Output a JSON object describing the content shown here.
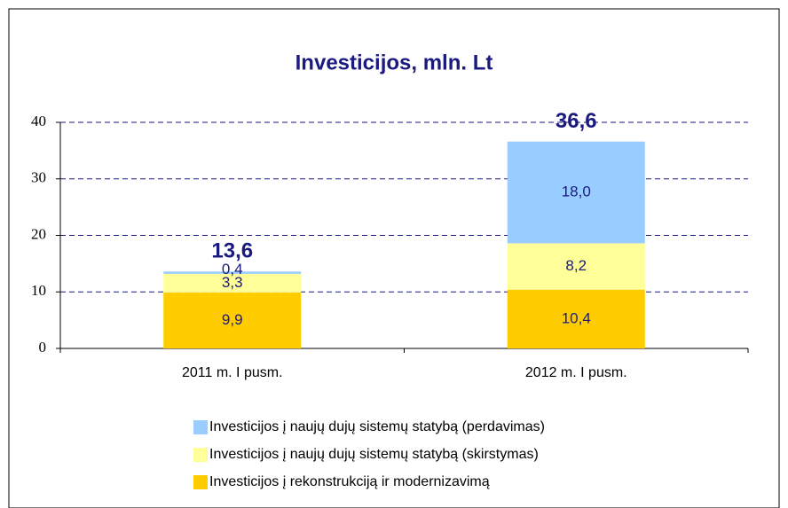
{
  "chart_data": {
    "type": "stacked_bar",
    "title": "Investicijos, mln. Lt",
    "categories": [
      "2011 m. I pusm.",
      "2012 m. I pusm."
    ],
    "series": [
      {
        "name": "Investicijos į rekonstrukciją ir modernizavimą",
        "color": "#ffcc00",
        "values": [
          9.9,
          10.4
        ],
        "value_labels": [
          "9,9",
          "10,4"
        ]
      },
      {
        "name": "Investicijos į naujų dujų sistemų statybą (skirstymas)",
        "color": "#ffff99",
        "values": [
          3.3,
          8.2
        ],
        "value_labels": [
          "3,3",
          "8,2"
        ]
      },
      {
        "name": "Investicijos į naujų dujų sistemų statybą (perdavimas)",
        "color": "#99ccff",
        "values": [
          0.4,
          18.0
        ],
        "value_labels": [
          "0,4",
          "18,0"
        ]
      }
    ],
    "totals": [
      13.6,
      36.6
    ],
    "totals_labels": [
      "13,6",
      "36,6"
    ],
    "ylim": [
      0,
      40
    ],
    "yticks": [
      0,
      10,
      20,
      30,
      40
    ],
    "grid": true,
    "legend": "bottom"
  }
}
